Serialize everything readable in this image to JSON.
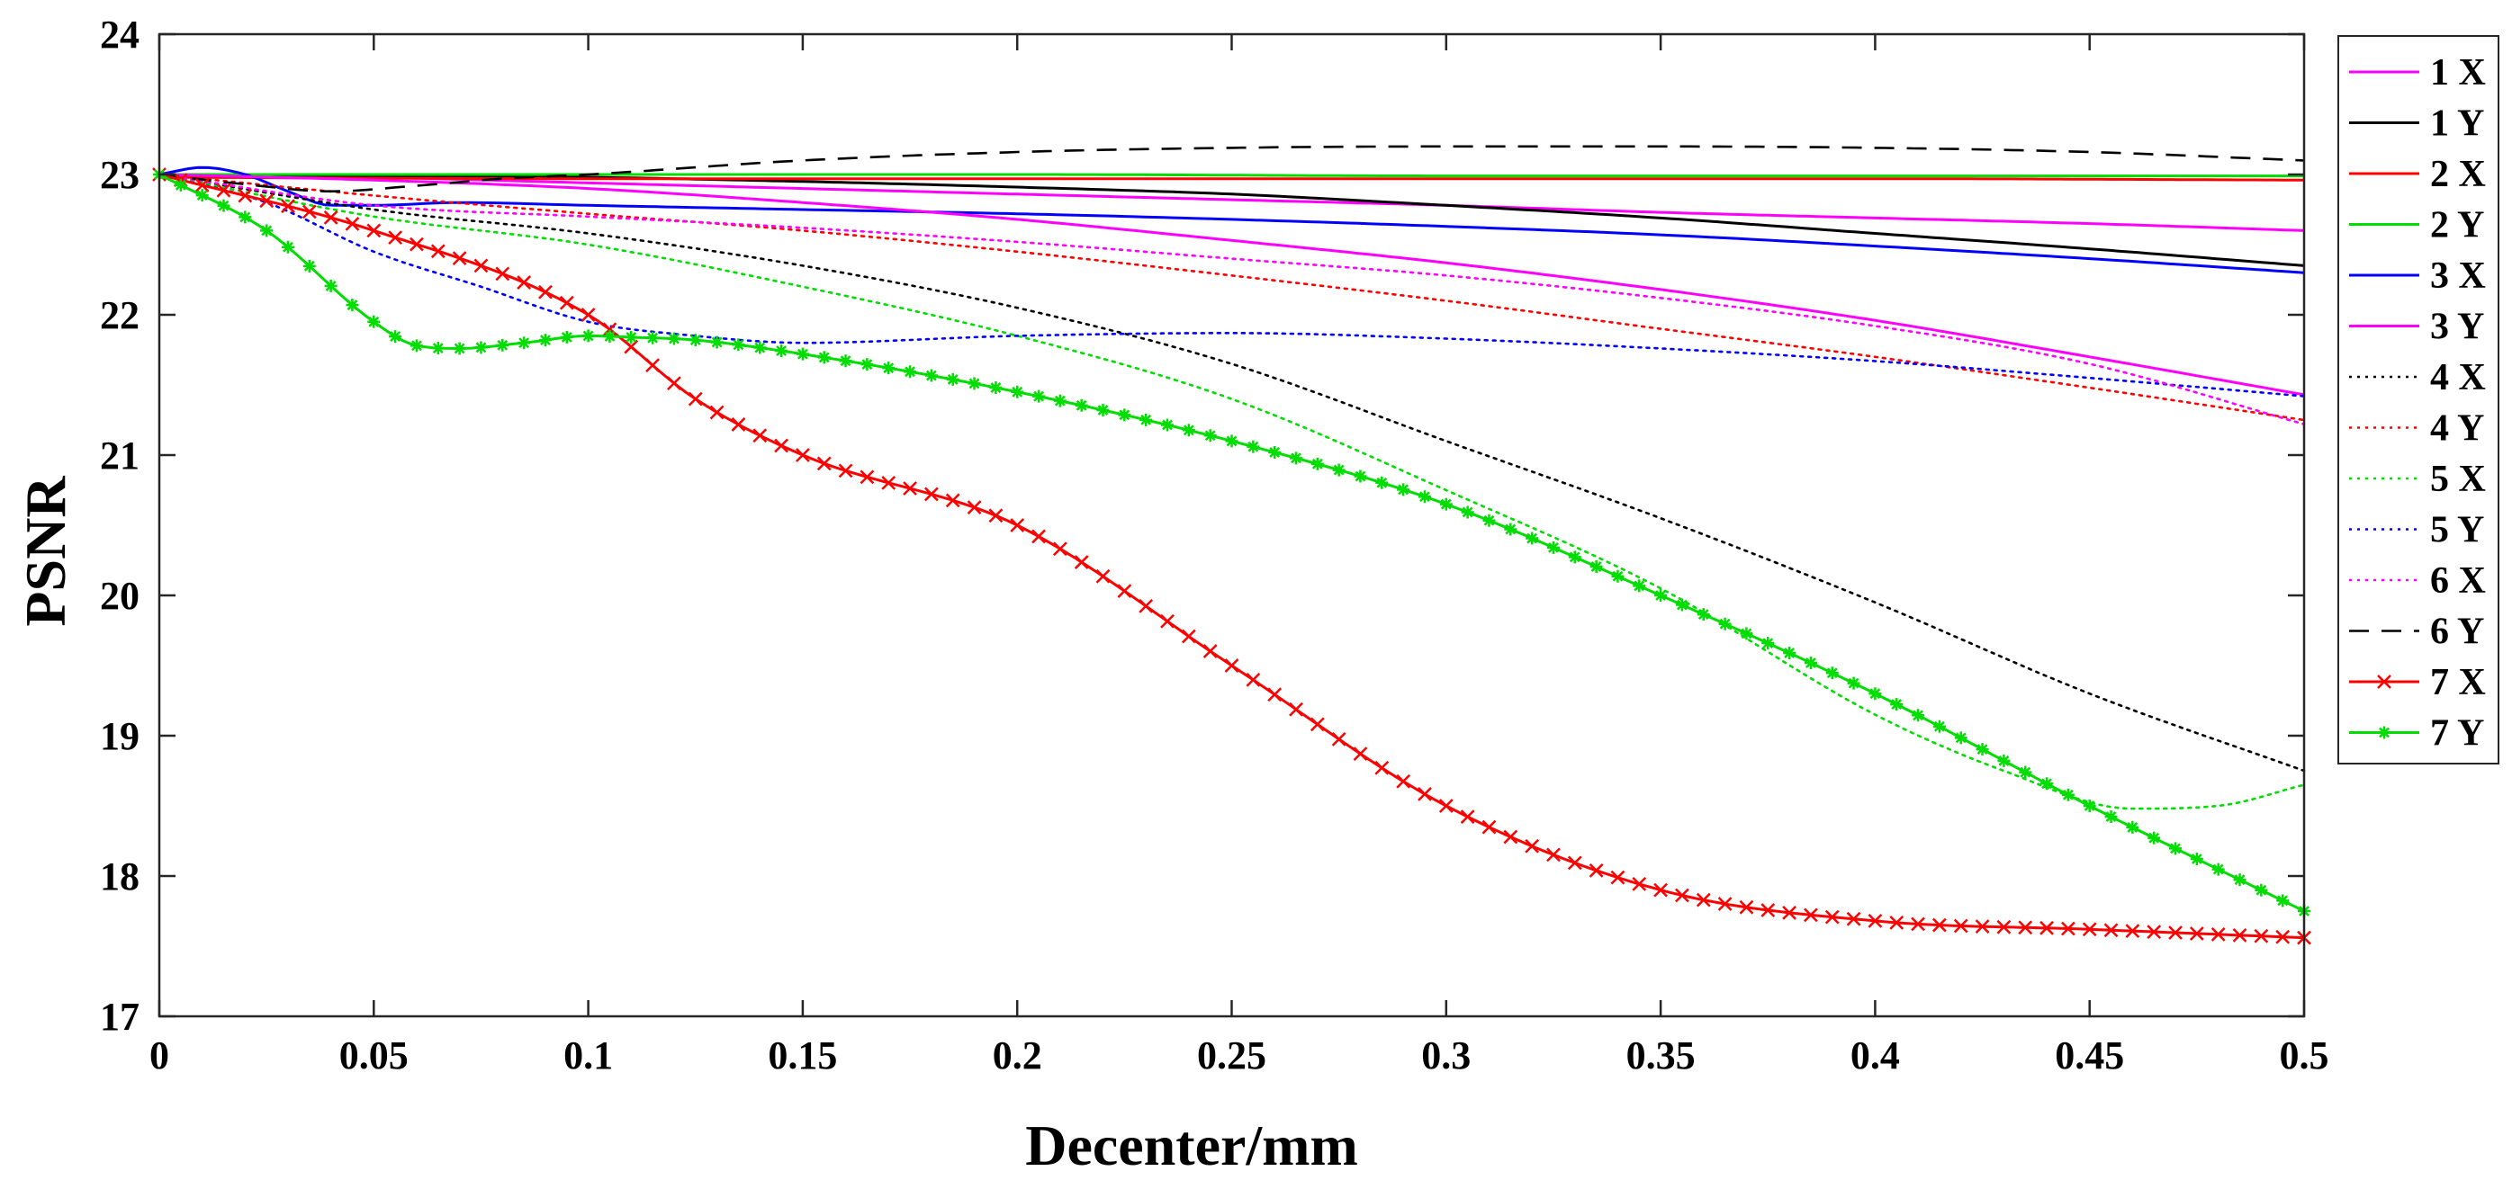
{
  "chart_data": {
    "type": "line",
    "title": "",
    "xlabel": "Decenter/mm",
    "ylabel": "PSNR",
    "xlim": [
      0,
      0.5
    ],
    "ylim": [
      17,
      24
    ],
    "xticks": [
      "0",
      "0.05",
      "0.1",
      "0.15",
      "0.2",
      "0.25",
      "0.3",
      "0.35",
      "0.4",
      "0.45",
      "0.5"
    ],
    "yticks": [
      "17",
      "18",
      "19",
      "20",
      "21",
      "22",
      "23",
      "24"
    ],
    "legend_position": "outside-right-top",
    "series": [
      {
        "name": "1 X",
        "color": "#ff00ff",
        "style": "solid",
        "marker": "none",
        "x": [
          0,
          0.05,
          0.1,
          0.15,
          0.2,
          0.25,
          0.3,
          0.35,
          0.4,
          0.45,
          0.5
        ],
        "y": [
          23.0,
          22.98,
          22.94,
          22.9,
          22.86,
          22.82,
          22.78,
          22.73,
          22.69,
          22.65,
          22.6
        ]
      },
      {
        "name": "1 Y",
        "color": "#000000",
        "style": "solid",
        "marker": "none",
        "x": [
          0,
          0.05,
          0.1,
          0.15,
          0.2,
          0.25,
          0.3,
          0.35,
          0.4,
          0.45,
          0.5
        ],
        "y": [
          23.0,
          22.99,
          22.98,
          22.95,
          22.91,
          22.86,
          22.78,
          22.69,
          22.58,
          22.47,
          22.35
        ]
      },
      {
        "name": "2 X",
        "color": "#ff0000",
        "style": "solid",
        "marker": "none",
        "x": [
          0,
          0.1,
          0.2,
          0.3,
          0.4,
          0.5
        ],
        "y": [
          22.98,
          22.97,
          22.97,
          22.97,
          22.97,
          22.96
        ]
      },
      {
        "name": "2 Y",
        "color": "#00dd00",
        "style": "solid",
        "marker": "none",
        "x": [
          0,
          0.1,
          0.2,
          0.3,
          0.4,
          0.5
        ],
        "y": [
          23.0,
          23.0,
          23.0,
          22.99,
          22.99,
          22.99
        ]
      },
      {
        "name": "3 X",
        "color": "#0000ff",
        "style": "solid",
        "marker": "none",
        "x": [
          0,
          0.01,
          0.02,
          0.03,
          0.04,
          0.05,
          0.07,
          0.1,
          0.15,
          0.2,
          0.25,
          0.3,
          0.35,
          0.4,
          0.45,
          0.5
        ],
        "y": [
          23.0,
          23.05,
          23.0,
          22.88,
          22.78,
          22.78,
          22.8,
          22.78,
          22.75,
          22.72,
          22.68,
          22.63,
          22.57,
          22.49,
          22.4,
          22.3
        ]
      },
      {
        "name": "3 Y",
        "color": "#ff00ff",
        "style": "solid",
        "marker": "none",
        "x": [
          0,
          0.05,
          0.1,
          0.15,
          0.2,
          0.25,
          0.3,
          0.35,
          0.4,
          0.45,
          0.5
        ],
        "y": [
          23.0,
          22.96,
          22.9,
          22.8,
          22.68,
          22.53,
          22.37,
          22.18,
          21.96,
          21.7,
          21.43
        ]
      },
      {
        "name": "4 X",
        "color": "#000000",
        "style": "dotted",
        "marker": "none",
        "x": [
          0,
          0.05,
          0.1,
          0.15,
          0.2,
          0.25,
          0.3,
          0.35,
          0.4,
          0.45,
          0.5
        ],
        "y": [
          23.0,
          22.75,
          22.58,
          22.35,
          22.05,
          21.65,
          21.1,
          20.55,
          19.95,
          19.3,
          18.75
        ]
      },
      {
        "name": "4 Y",
        "color": "#ff0000",
        "style": "dotted",
        "marker": "none",
        "x": [
          0,
          0.05,
          0.1,
          0.15,
          0.2,
          0.25,
          0.3,
          0.35,
          0.4,
          0.45,
          0.5
        ],
        "y": [
          23.0,
          22.85,
          22.72,
          22.6,
          22.45,
          22.28,
          22.1,
          21.9,
          21.7,
          21.48,
          21.25
        ]
      },
      {
        "name": "5 X",
        "color": "#00dd00",
        "style": "dotted",
        "marker": "none",
        "x": [
          0,
          0.05,
          0.1,
          0.15,
          0.2,
          0.25,
          0.3,
          0.35,
          0.4,
          0.43,
          0.46,
          0.48,
          0.5
        ],
        "y": [
          23.0,
          22.7,
          22.5,
          22.2,
          21.85,
          21.4,
          20.75,
          20.05,
          19.15,
          18.75,
          18.48,
          18.5,
          18.65
        ]
      },
      {
        "name": "5 Y",
        "color": "#0000ff",
        "style": "dotted",
        "marker": "none",
        "x": [
          0,
          0.025,
          0.05,
          0.075,
          0.1,
          0.125,
          0.15,
          0.2,
          0.25,
          0.3,
          0.35,
          0.4,
          0.45,
          0.5
        ],
        "y": [
          23.0,
          22.8,
          22.45,
          22.2,
          21.95,
          21.85,
          21.8,
          21.85,
          21.87,
          21.83,
          21.76,
          21.67,
          21.55,
          21.42
        ]
      },
      {
        "name": "6 X",
        "color": "#ff00ff",
        "style": "dotted",
        "marker": "none",
        "x": [
          0,
          0.05,
          0.1,
          0.15,
          0.2,
          0.25,
          0.3,
          0.35,
          0.4,
          0.45,
          0.5
        ],
        "y": [
          23.0,
          22.78,
          22.7,
          22.62,
          22.52,
          22.4,
          22.28,
          22.12,
          21.92,
          21.65,
          21.22
        ]
      },
      {
        "name": "6 Y",
        "color": "#000000",
        "style": "dashed",
        "marker": "none",
        "x": [
          0,
          0.02,
          0.04,
          0.06,
          0.08,
          0.1,
          0.15,
          0.2,
          0.25,
          0.3,
          0.35,
          0.4,
          0.45,
          0.5
        ],
        "y": [
          23.0,
          22.93,
          22.88,
          22.92,
          22.97,
          23.0,
          23.1,
          23.16,
          23.19,
          23.2,
          23.2,
          23.19,
          23.16,
          23.1
        ]
      },
      {
        "name": "7 X",
        "color": "#ff0000",
        "style": "solid",
        "marker": "x",
        "x": [
          0,
          0.05,
          0.1,
          0.125,
          0.15,
          0.2,
          0.25,
          0.3,
          0.35,
          0.4,
          0.45,
          0.5
        ],
        "y": [
          23.0,
          22.6,
          22.0,
          21.4,
          21.0,
          20.5,
          19.5,
          18.5,
          17.9,
          17.68,
          17.62,
          17.56
        ]
      },
      {
        "name": "7 Y",
        "color": "#00dd00",
        "style": "solid",
        "marker": "*",
        "x": [
          0,
          0.025,
          0.05,
          0.06,
          0.07,
          0.085,
          0.1,
          0.11,
          0.125,
          0.15,
          0.2,
          0.25,
          0.3,
          0.35,
          0.4,
          0.45,
          0.5
        ],
        "y": [
          23.0,
          22.6,
          21.95,
          21.78,
          21.76,
          21.8,
          21.85,
          21.84,
          21.82,
          21.72,
          21.45,
          21.1,
          20.65,
          20.0,
          19.3,
          18.5,
          17.75
        ]
      }
    ]
  }
}
